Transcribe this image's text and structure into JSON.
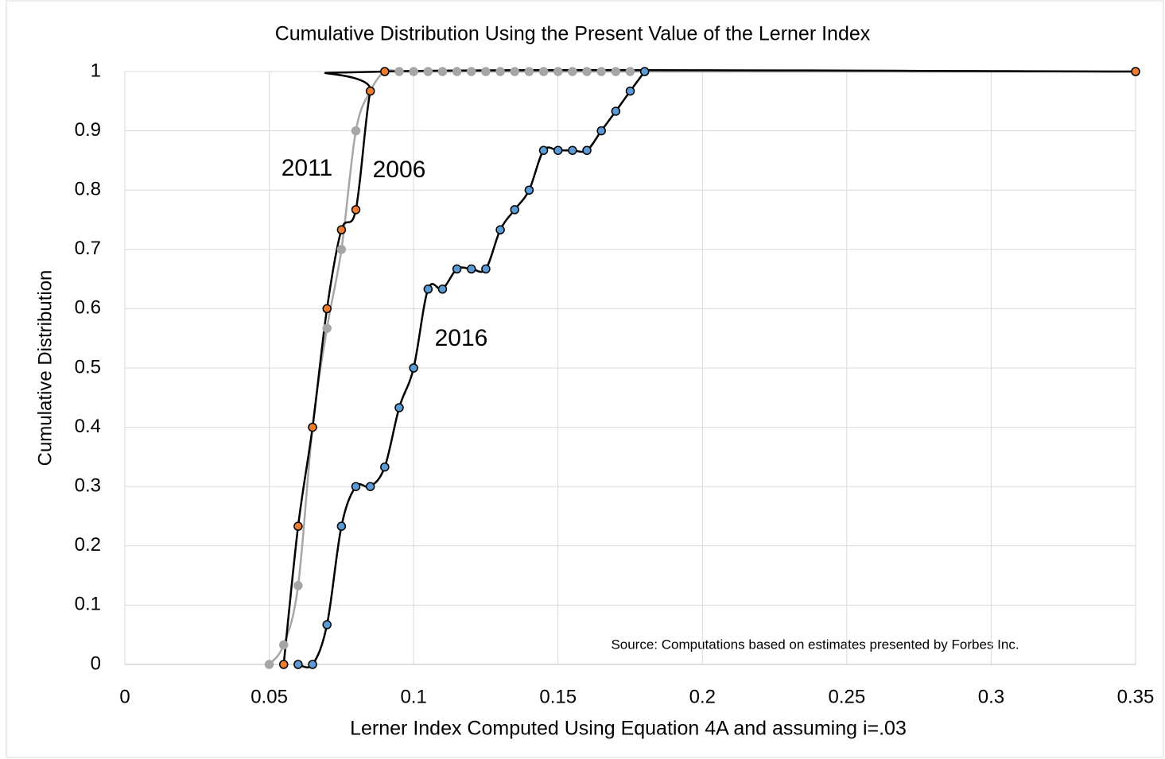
{
  "chart_data": {
    "type": "scatter",
    "title": "Cumulative Distribution Using the Present Value of the Lerner Index",
    "x_label": "Lerner Index Computed Using Equation 4A and assuming i=.03",
    "y_label": "Cumulative Distribution",
    "annotation": "Source: Computations based on estimates presented by Forbes Inc.",
    "xlim": [
      0,
      0.35
    ],
    "ylim": [
      0,
      1
    ],
    "xticks": [
      0,
      0.05,
      0.1,
      0.15,
      0.2,
      0.25,
      0.3,
      0.35
    ],
    "yticks": [
      0,
      0.1,
      0.2,
      0.3,
      0.4,
      0.5,
      0.6,
      0.7,
      0.8,
      0.9,
      1
    ],
    "grid": true,
    "series": [
      {
        "name": "2011",
        "color": "#a6a6a6",
        "marker_color": "#a6a6a6",
        "x": [
          0.05,
          0.055,
          0.06,
          0.065,
          0.07,
          0.075,
          0.08,
          0.085,
          0.09,
          0.095,
          0.1,
          0.105,
          0.11,
          0.115,
          0.12,
          0.125,
          0.13,
          0.135,
          0.14,
          0.145,
          0.15,
          0.155,
          0.16,
          0.165,
          0.17,
          0.175,
          0.18,
          0.35
        ],
        "values": [
          0,
          0.033,
          0.133,
          0.4,
          0.567,
          0.7,
          0.9,
          0.967,
          1,
          1,
          1,
          1,
          1,
          1,
          1,
          1,
          1,
          1,
          1,
          1,
          1,
          1,
          1,
          1,
          1,
          1,
          1,
          1
        ]
      },
      {
        "name": "2006",
        "color": "#000000",
        "marker_color": "#ed7d31",
        "x": [
          0.055,
          0.06,
          0.065,
          0.07,
          0.075,
          0.08,
          0.085,
          0.09,
          0.35
        ],
        "values": [
          0,
          0.233,
          0.4,
          0.6,
          0.733,
          0.767,
          0.967,
          1,
          1
        ]
      },
      {
        "name": "2016",
        "color": "#000000",
        "marker_color": "#5b9bd5",
        "x": [
          0.06,
          0.065,
          0.07,
          0.075,
          0.08,
          0.085,
          0.09,
          0.095,
          0.1,
          0.105,
          0.11,
          0.115,
          0.12,
          0.125,
          0.13,
          0.135,
          0.14,
          0.145,
          0.15,
          0.155,
          0.16,
          0.165,
          0.17,
          0.175,
          0.18
        ],
        "values": [
          0,
          0,
          0.067,
          0.233,
          0.3,
          0.3,
          0.333,
          0.433,
          0.5,
          0.633,
          0.633,
          0.667,
          0.667,
          0.667,
          0.733,
          0.767,
          0.8,
          0.867,
          0.867,
          0.867,
          0.867,
          0.9,
          0.933,
          0.967,
          1
        ]
      }
    ]
  }
}
